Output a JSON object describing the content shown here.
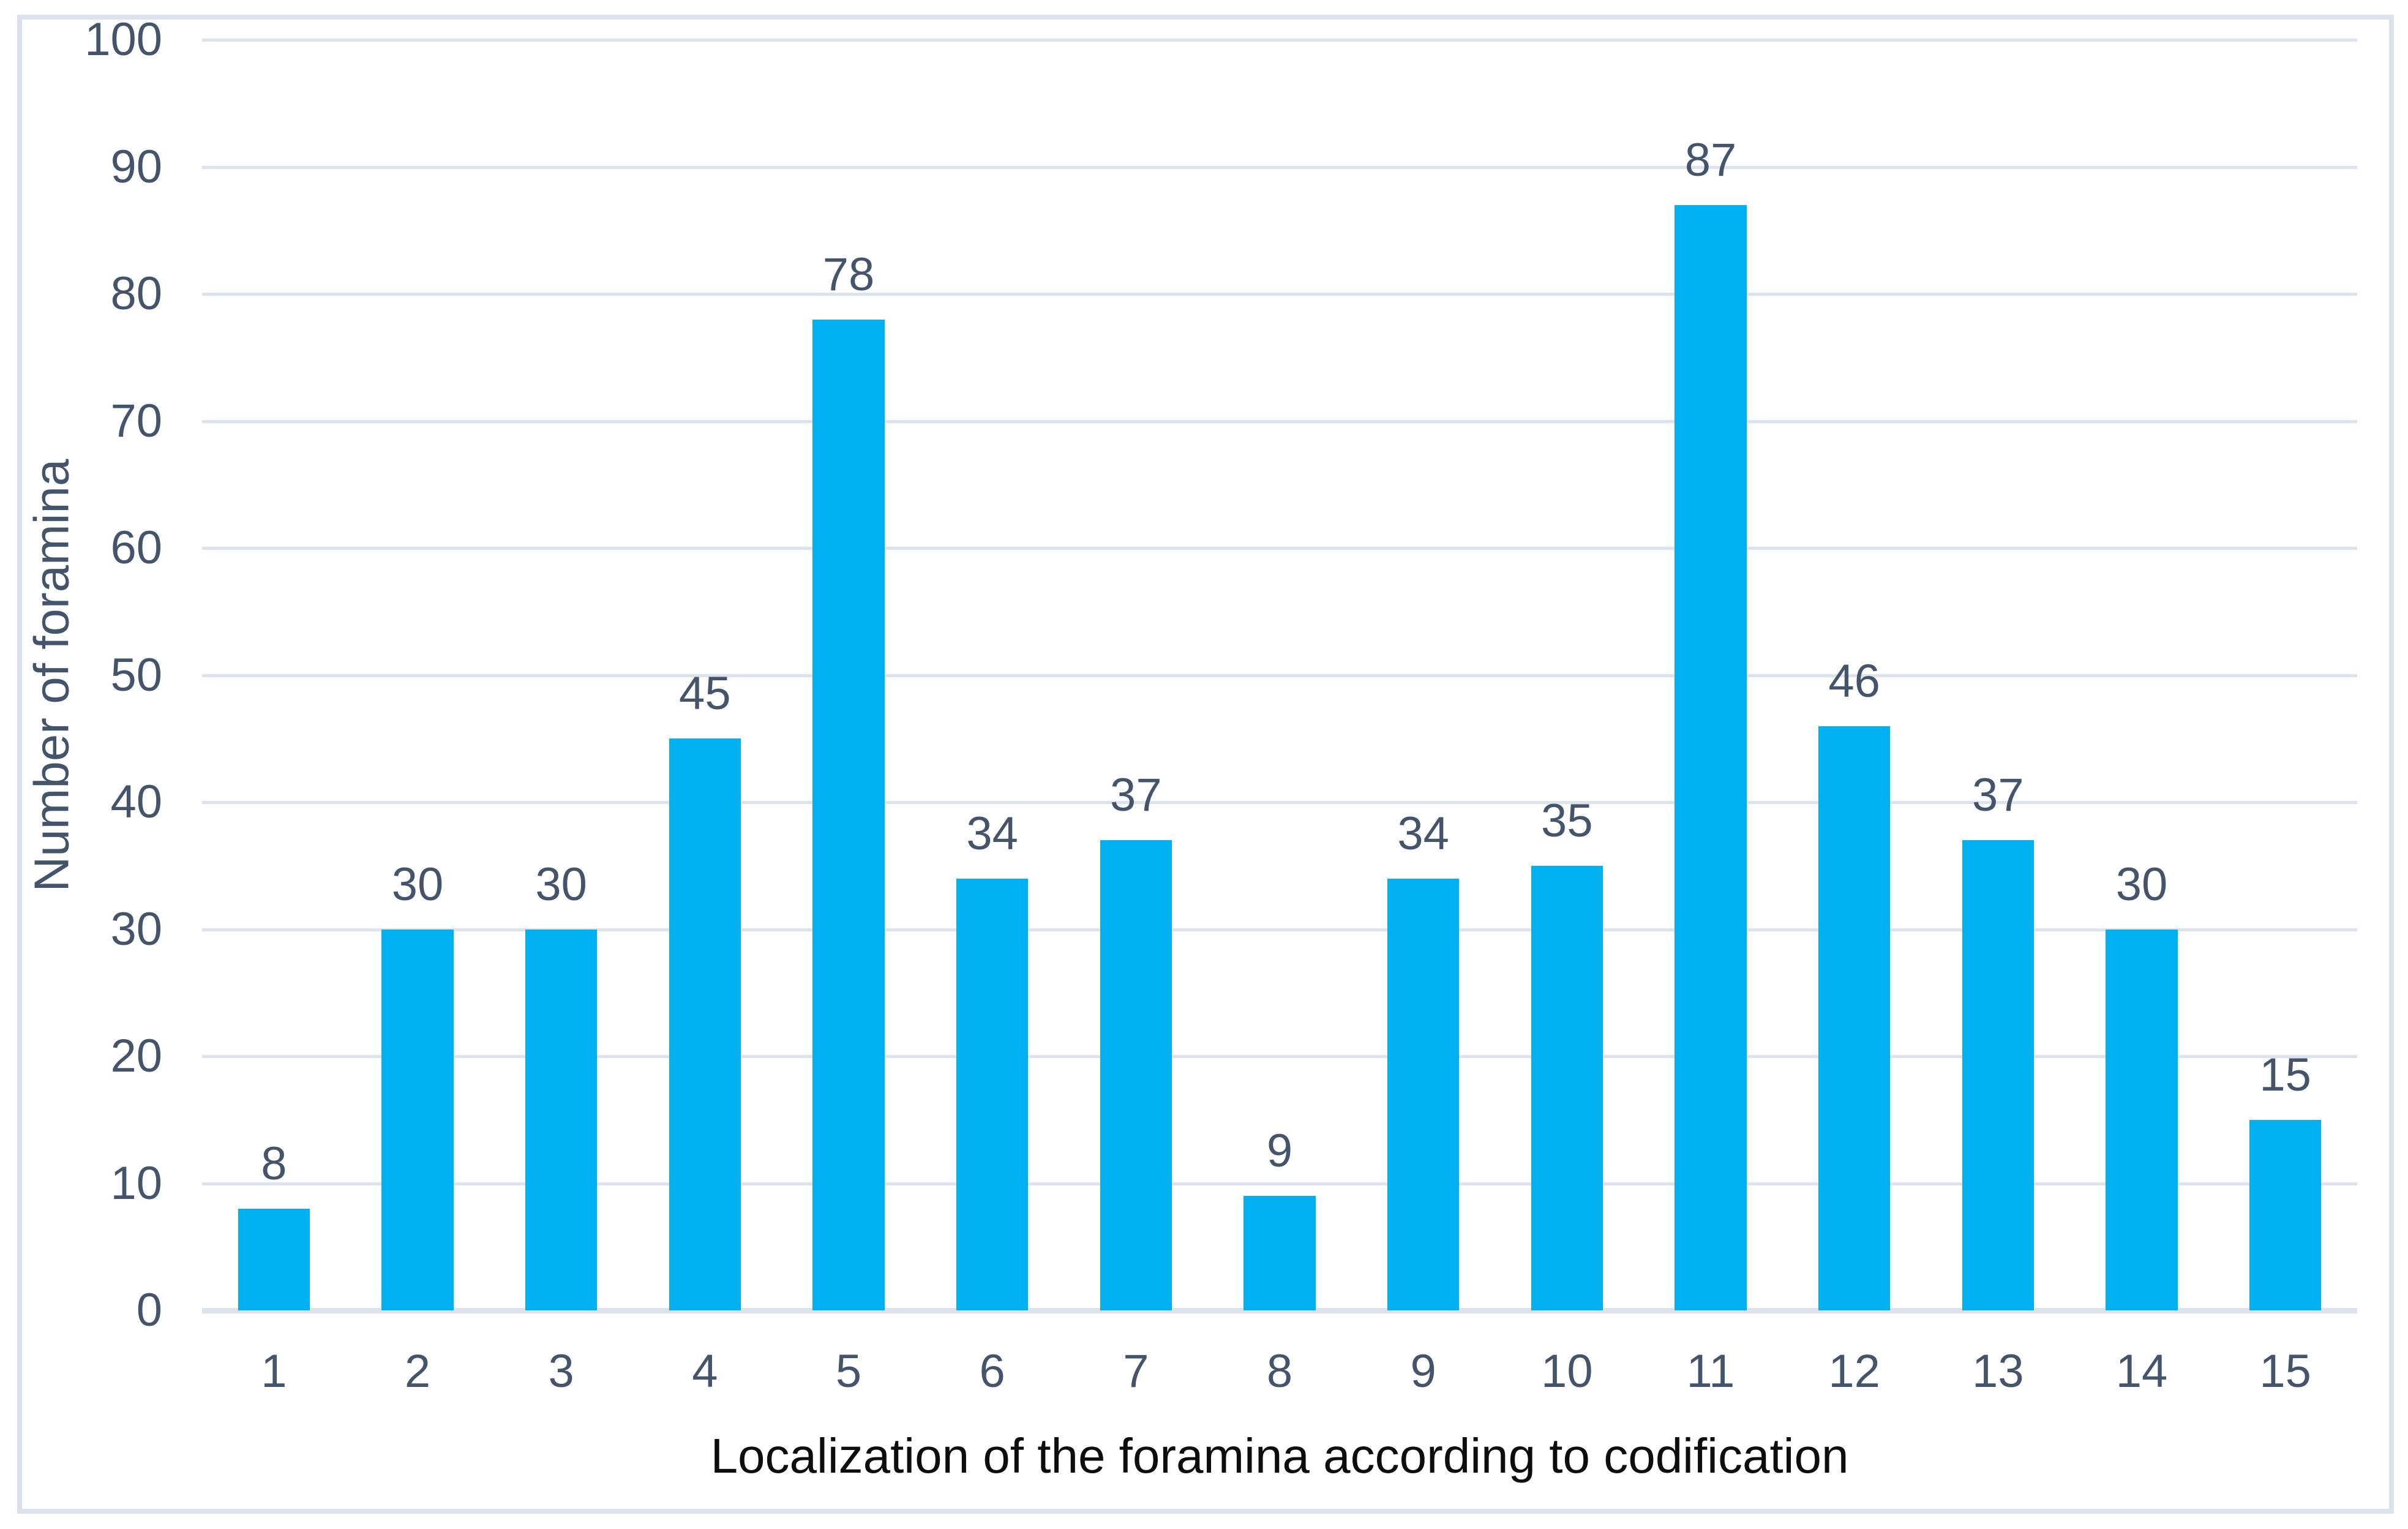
{
  "chart_data": {
    "type": "bar",
    "categories": [
      "1",
      "2",
      "3",
      "4",
      "5",
      "6",
      "7",
      "8",
      "9",
      "10",
      "11",
      "12",
      "13",
      "14",
      "15"
    ],
    "values": [
      8,
      30,
      30,
      45,
      78,
      34,
      37,
      9,
      34,
      35,
      87,
      46,
      37,
      30,
      15
    ],
    "data_labels": [
      "8",
      "30",
      "30",
      "45",
      "78",
      "34",
      "37",
      "9",
      "34",
      "35",
      "87",
      "46",
      "37",
      "30",
      "15"
    ],
    "title": "",
    "xlabel": "Localization of the foramina according to codification",
    "ylabel": "Number of foramina",
    "ylim": [
      0,
      100
    ],
    "ytick_step": 10,
    "ytick_labels": [
      "0",
      "10",
      "20",
      "30",
      "40",
      "50",
      "60",
      "70",
      "80",
      "90",
      "100"
    ],
    "grid": true,
    "legend_position": "none",
    "colors": {
      "bar": "#00B0F0",
      "tick_text": "#44546A",
      "x_axis_title_text": "#0d0d0d",
      "gridline": "#dce3ec",
      "frame_border": "#dbe2ec",
      "background": "#ffffff"
    }
  }
}
